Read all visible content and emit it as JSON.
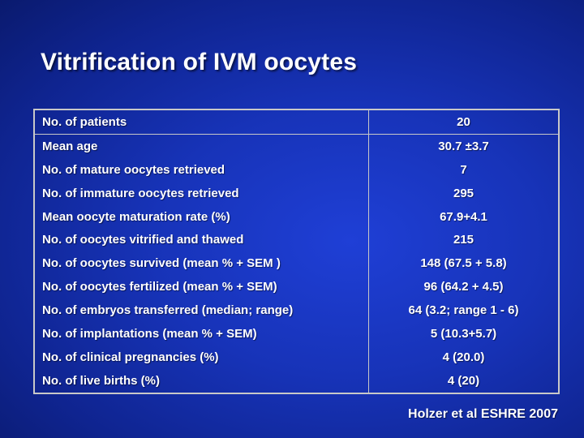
{
  "slide": {
    "title": "Vitrification of IVM oocytes",
    "footer": "Holzer et al ESHRE  2007"
  },
  "table": {
    "rows": [
      {
        "label": "No. of patients",
        "value": "20"
      },
      {
        "label": "Mean age",
        "value": "30.7 ±3.7"
      },
      {
        "label": "No. of mature oocytes retrieved",
        "value": "7"
      },
      {
        "label": "No. of immature oocytes retrieved",
        "value": "295"
      },
      {
        "label": "Mean oocyte maturation rate (%)",
        "value": "67.9+4.1"
      },
      {
        "label": "No. of oocytes vitrified and thawed",
        "value": "215"
      },
      {
        "label": "No. of oocytes survived (mean % + SEM )",
        "value": "148  (67.5 + 5.8)"
      },
      {
        "label": "No. of oocytes fertilized (mean % + SEM)",
        "value": "96 (64.2 + 4.5)"
      },
      {
        "label": "No. of embryos transferred (median; range)",
        "value": "64 (3.2; range 1 - 6)"
      },
      {
        "label": "No. of implantations (mean % + SEM)",
        "value": "5 (10.3+5.7)"
      },
      {
        "label": "No. of clinical pregnancies (%)",
        "value": "4 (20.0)"
      },
      {
        "label": "No. of live births (%)",
        "value": "4 (20)"
      }
    ]
  }
}
